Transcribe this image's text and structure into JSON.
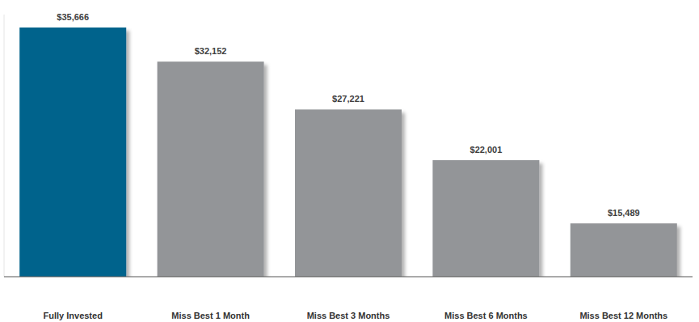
{
  "chart_data": {
    "type": "bar",
    "categories": [
      "Fully Invested",
      "Miss Best 1 Month",
      "Miss Best 3 Months",
      "Miss Best 6 Months",
      "Miss Best 12 Months"
    ],
    "values": [
      35666,
      32152,
      27221,
      22001,
      15489
    ],
    "value_labels": [
      "$35,666",
      "$32,152",
      "$27,221",
      "$22,001",
      "$15,489"
    ],
    "colors": [
      "#00648c",
      "#939598",
      "#939598",
      "#939598",
      "#939598"
    ],
    "ylim": [
      10000,
      37000
    ],
    "data_labels": true,
    "tick_labels": "x",
    "grid": false
  }
}
